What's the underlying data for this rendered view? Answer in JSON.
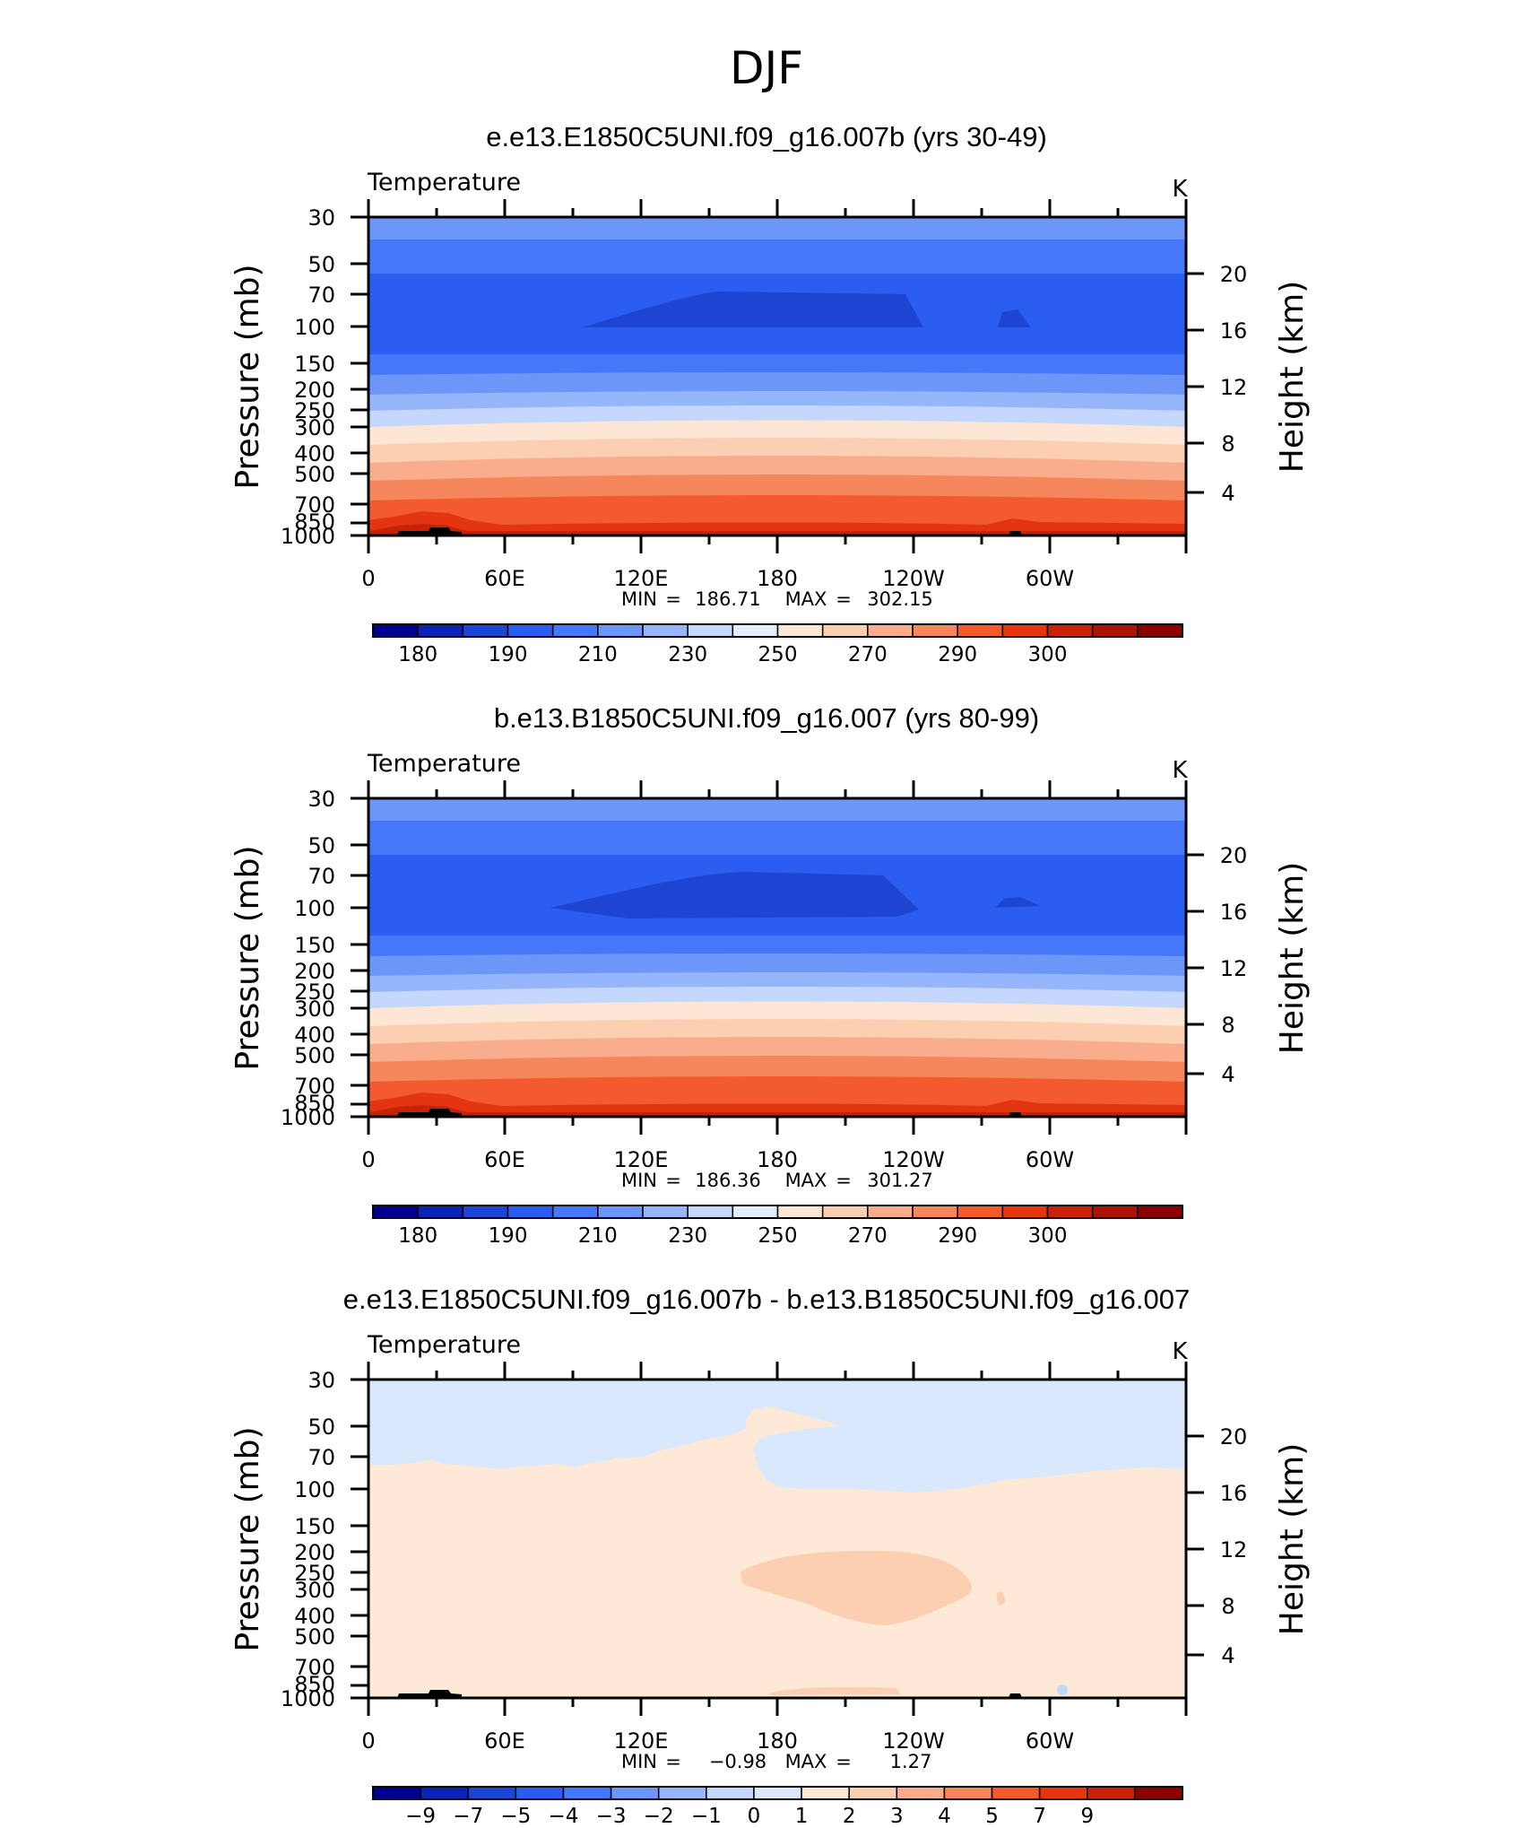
{
  "figure_title": "DJF",
  "chart_data": [
    {
      "type": "heatmap",
      "title": "e.e13.E1850C5UNI.f09_g16.007b (yrs 30-49)",
      "left_label": "Temperature",
      "units": "K",
      "ylabel": "Pressure (mb)",
      "y2label": "Height (km)",
      "x_ticks": [
        "0",
        "60E",
        "120E",
        "180",
        "120W",
        "60W"
      ],
      "y_ticks": [
        "30",
        "50",
        "70",
        "100",
        "150",
        "200",
        "250",
        "300",
        "400",
        "500",
        "700",
        "850",
        "1000"
      ],
      "y2_ticks": [
        "20",
        "16",
        "12",
        "8",
        "4"
      ],
      "stats": {
        "min_label": "MIN",
        "min": "186.71",
        "max_label": "MAX",
        "max": "302.15"
      },
      "colorbar_labels": [
        "180",
        "190",
        "210",
        "230",
        "250",
        "270",
        "290",
        "300"
      ],
      "colorbar_colors": [
        "#00008c",
        "#0a24b4",
        "#1e44d2",
        "#2a5ef0",
        "#4478f8",
        "#6c96f8",
        "#96b6fc",
        "#c4d8fe",
        "#e4eefe",
        "#fee6d4",
        "#fccfb3",
        "#f9ad8c",
        "#f6875d",
        "#f35a2e",
        "#e33512",
        "#c72308",
        "#a91404",
        "#8a0000"
      ]
    },
    {
      "type": "heatmap",
      "title": "b.e13.B1850C5UNI.f09_g16.007 (yrs 80-99)",
      "left_label": "Temperature",
      "units": "K",
      "ylabel": "Pressure (mb)",
      "y2label": "Height (km)",
      "x_ticks": [
        "0",
        "60E",
        "120E",
        "180",
        "120W",
        "60W"
      ],
      "y_ticks": [
        "30",
        "50",
        "70",
        "100",
        "150",
        "200",
        "250",
        "300",
        "400",
        "500",
        "700",
        "850",
        "1000"
      ],
      "y2_ticks": [
        "20",
        "16",
        "12",
        "8",
        "4"
      ],
      "stats": {
        "min_label": "MIN",
        "min": "186.36",
        "max_label": "MAX",
        "max": "301.27"
      },
      "colorbar_labels": [
        "180",
        "190",
        "210",
        "230",
        "250",
        "270",
        "290",
        "300"
      ],
      "colorbar_colors": [
        "#00008c",
        "#0a24b4",
        "#1e44d2",
        "#2a5ef0",
        "#4478f8",
        "#6c96f8",
        "#96b6fc",
        "#c4d8fe",
        "#e4eefe",
        "#fee6d4",
        "#fccfb3",
        "#f9ad8c",
        "#f6875d",
        "#f35a2e",
        "#e33512",
        "#c72308",
        "#a91404",
        "#8a0000"
      ]
    },
    {
      "type": "heatmap",
      "title": "e.e13.E1850C5UNI.f09_g16.007b - b.e13.B1850C5UNI.f09_g16.007",
      "left_label": "Temperature",
      "units": "K",
      "ylabel": "Pressure (mb)",
      "y2label": "Height (km)",
      "x_ticks": [
        "0",
        "60E",
        "120E",
        "180",
        "120W",
        "60W"
      ],
      "y_ticks": [
        "30",
        "50",
        "70",
        "100",
        "150",
        "200",
        "250",
        "300",
        "400",
        "500",
        "700",
        "850",
        "1000"
      ],
      "y2_ticks": [
        "20",
        "16",
        "12",
        "8",
        "4"
      ],
      "stats": {
        "min_label": "MIN",
        "min": "−0.98",
        "max_label": "MAX",
        "max": "1.27"
      },
      "colorbar_labels": [
        "−9",
        "−7",
        "−5",
        "−4",
        "−3",
        "−2",
        "−1",
        "0",
        "1",
        "2",
        "3",
        "4",
        "5",
        "7",
        "9"
      ],
      "colorbar_colors": [
        "#00008c",
        "#0a24b4",
        "#1e44d2",
        "#2a5ef0",
        "#4478f8",
        "#6c96f8",
        "#96b6fc",
        "#c4d8fe",
        "#d9e8fc",
        "#fee8d6",
        "#fccfb3",
        "#f9ad8c",
        "#f6875d",
        "#f35a2e",
        "#e33512",
        "#c72308",
        "#8a0000"
      ]
    }
  ]
}
